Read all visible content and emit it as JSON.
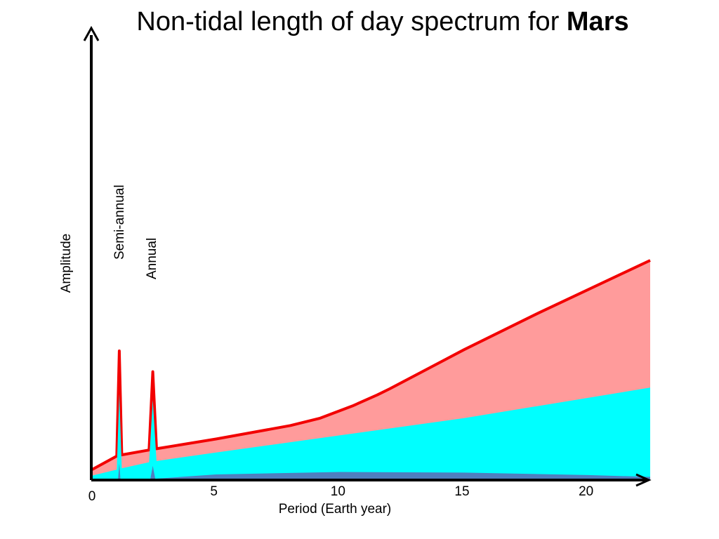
{
  "title": {
    "text": "Non-tidal length of day spectrum for ",
    "bold": "Mars"
  },
  "chart_data": {
    "type": "area",
    "title": "Non-tidal length of day spectrum for Mars",
    "xlabel": "Period (Earth year)",
    "ylabel": "Amplitude",
    "xlim": [
      0,
      22.5
    ],
    "ylim": [
      0,
      22
    ],
    "xticks": [
      {
        "value": 0,
        "label": "0"
      },
      {
        "value": 5,
        "label": "5"
      },
      {
        "value": 10,
        "label": "10"
      },
      {
        "value": 15,
        "label": "15"
      },
      {
        "value": 20,
        "label": "20"
      }
    ],
    "annotations": [
      {
        "text": "Semi-annual",
        "x": 1.1
      },
      {
        "text": "Annual",
        "x": 2.4
      }
    ],
    "series": [
      {
        "color": "#f20000",
        "fill": "#ff9b9b",
        "points": [
          [
            0,
            0.8
          ],
          [
            1.0,
            1.9
          ],
          [
            1.1,
            10.5
          ],
          [
            1.2,
            2.0
          ],
          [
            2.3,
            2.4
          ],
          [
            2.45,
            8.8
          ],
          [
            2.6,
            2.5
          ],
          [
            5,
            3.3
          ],
          [
            8,
            4.4
          ],
          [
            9.2,
            5.0
          ],
          [
            10.5,
            6.0
          ],
          [
            11.5,
            6.9
          ],
          [
            12,
            7.4
          ],
          [
            15,
            10.6
          ],
          [
            18,
            13.6
          ],
          [
            22.5,
            17.9
          ]
        ]
      },
      {
        "color": "#00ffff",
        "fill": "#00ffff",
        "points": [
          [
            0,
            0.3
          ],
          [
            1.0,
            0.8
          ],
          [
            1.1,
            7.0
          ],
          [
            1.2,
            0.9
          ],
          [
            2.3,
            1.4
          ],
          [
            2.45,
            6.5
          ],
          [
            2.6,
            1.5
          ],
          [
            5,
            2.2
          ],
          [
            10,
            3.6
          ],
          [
            15,
            5.0
          ],
          [
            22.5,
            7.5
          ]
        ]
      },
      {
        "color": "#4f7fbf",
        "fill": "#4f7fbf",
        "points": [
          [
            0,
            0
          ],
          [
            1.05,
            0.0
          ],
          [
            1.1,
            1.3
          ],
          [
            1.15,
            0.0
          ],
          [
            2.35,
            0.0
          ],
          [
            2.45,
            1.1
          ],
          [
            2.55,
            0.05
          ],
          [
            5,
            0.4
          ],
          [
            10,
            0.6
          ],
          [
            15,
            0.55
          ],
          [
            20,
            0.35
          ],
          [
            22.5,
            0.2
          ]
        ]
      }
    ]
  }
}
